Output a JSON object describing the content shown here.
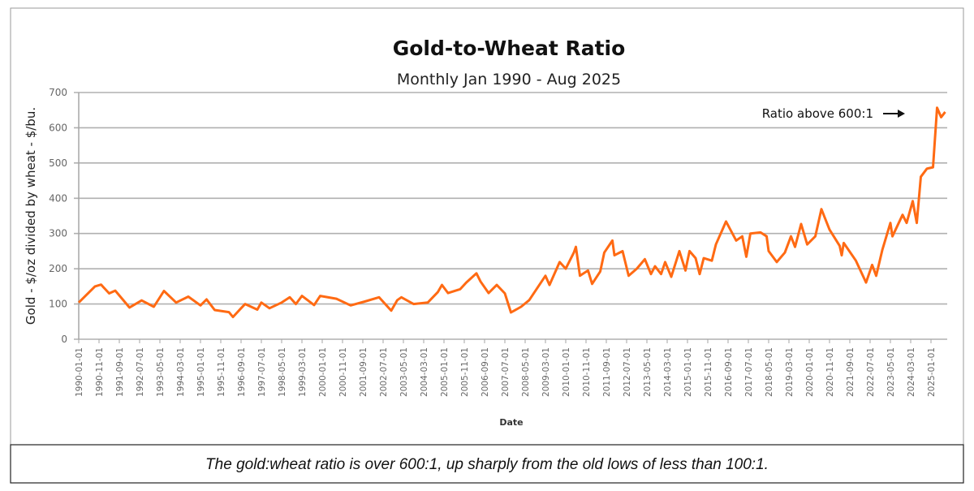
{
  "chart_data": {
    "type": "line",
    "title": "Gold-to-Wheat Ratio",
    "subtitle": "Monthly Jan 1990 - Aug 2025",
    "xlabel": "Date",
    "ylabel": "Gold - $/oz divided by wheat - $/bu.",
    "ylim": [
      0,
      700
    ],
    "y_ticks": [
      "0",
      "100",
      "200",
      "300",
      "400",
      "500",
      "600",
      "700"
    ],
    "xlim": [
      "1990-01",
      "2025-09"
    ],
    "x_tick_labels": [
      "1990-01-01",
      "1990-11-01",
      "1991-09-01",
      "1992-07-01",
      "1993-05-01",
      "1994-03-01",
      "1995-01-01",
      "1995-11-01",
      "1996-09-01",
      "1997-07-01",
      "1998-05-01",
      "1999-03-01",
      "2000-01-01",
      "2000-11-01",
      "2001-09-01",
      "2002-07-01",
      "2003-05-01",
      "2004-03-01",
      "2005-01-01",
      "2005-11-01",
      "2006-09-01",
      "2007-07-01",
      "2008-05-01",
      "2009-03-01",
      "2010-01-01",
      "2010-11-01",
      "2011-09-01",
      "2012-07-01",
      "2013-05-01",
      "2014-03-01",
      "2015-01-01",
      "2015-11-01",
      "2016-09-01",
      "2017-07-01",
      "2018-05-01",
      "2019-03-01",
      "2020-01-01",
      "2020-11-01",
      "2021-09-01",
      "2022-07-01",
      "2023-05-01",
      "2024-03-01",
      "2025-01-01"
    ],
    "grid": "horizontal",
    "line_color": "#ff6a13",
    "annotation": "Ratio above 600:1",
    "x": [
      "1990-01",
      "1990-09",
      "1990-12",
      "1991-04",
      "1991-07",
      "1992-02",
      "1992-08",
      "1993-02",
      "1993-07",
      "1994-01",
      "1994-07",
      "1995-01",
      "1995-04",
      "1995-08",
      "1996-03",
      "1996-05",
      "1996-09",
      "1996-11",
      "1997-05",
      "1997-07",
      "1997-11",
      "1998-05",
      "1998-09",
      "1998-12",
      "1999-03",
      "1999-09",
      "1999-12",
      "2000-08",
      "2001-03",
      "2001-10",
      "2002-05",
      "2002-11",
      "2003-02",
      "2003-04",
      "2003-10",
      "2004-05",
      "2004-10",
      "2004-12",
      "2005-03",
      "2005-09",
      "2005-12",
      "2006-05",
      "2006-07",
      "2006-11",
      "2007-03",
      "2007-07",
      "2007-10",
      "2008-03",
      "2008-07",
      "2009-03",
      "2009-05",
      "2009-10",
      "2010-01",
      "2010-05",
      "2010-06",
      "2010-08",
      "2010-12",
      "2011-02",
      "2011-06",
      "2011-08",
      "2011-12",
      "2012-01",
      "2012-05",
      "2012-08",
      "2012-12",
      "2013-04",
      "2013-07",
      "2013-09",
      "2013-12",
      "2014-02",
      "2014-05",
      "2014-09",
      "2014-12",
      "2015-02",
      "2015-05",
      "2015-07",
      "2015-09",
      "2016-01",
      "2016-03",
      "2016-08",
      "2017-01",
      "2017-04",
      "2017-06",
      "2017-08",
      "2018-01",
      "2018-04",
      "2018-05",
      "2018-09",
      "2019-01",
      "2019-04",
      "2019-06",
      "2019-09",
      "2019-12",
      "2020-04",
      "2020-07",
      "2020-11",
      "2021-04",
      "2021-05",
      "2021-06",
      "2021-12",
      "2022-05",
      "2022-08",
      "2022-10",
      "2023-01",
      "2023-05",
      "2023-06",
      "2023-11",
      "2024-01",
      "2024-04",
      "2024-06",
      "2024-08",
      "2024-11",
      "2025-02",
      "2025-04",
      "2025-06",
      "2025-08"
    ],
    "values": [
      104,
      150,
      155,
      130,
      138,
      90,
      110,
      92,
      137,
      104,
      121,
      96,
      113,
      83,
      77,
      63,
      88,
      100,
      84,
      104,
      88,
      104,
      119,
      100,
      123,
      97,
      123,
      115,
      96,
      107,
      119,
      81,
      111,
      119,
      100,
      104,
      134,
      154,
      131,
      142,
      161,
      187,
      164,
      131,
      154,
      130,
      76,
      92,
      111,
      180,
      154,
      219,
      200,
      246,
      262,
      180,
      195,
      157,
      192,
      246,
      280,
      238,
      250,
      180,
      200,
      227,
      185,
      207,
      185,
      219,
      177,
      250,
      195,
      250,
      230,
      185,
      230,
      223,
      269,
      334,
      280,
      292,
      234,
      300,
      303,
      292,
      250,
      219,
      246,
      292,
      262,
      327,
      269,
      292,
      369,
      311,
      265,
      238,
      273,
      223,
      161,
      211,
      180,
      253,
      330,
      292,
      353,
      330,
      392,
      330,
      461,
      484,
      488,
      657,
      630,
      645
    ]
  },
  "caption": "The gold:wheat ratio is over 600:1, up sharply from the old lows of less than 100:1."
}
